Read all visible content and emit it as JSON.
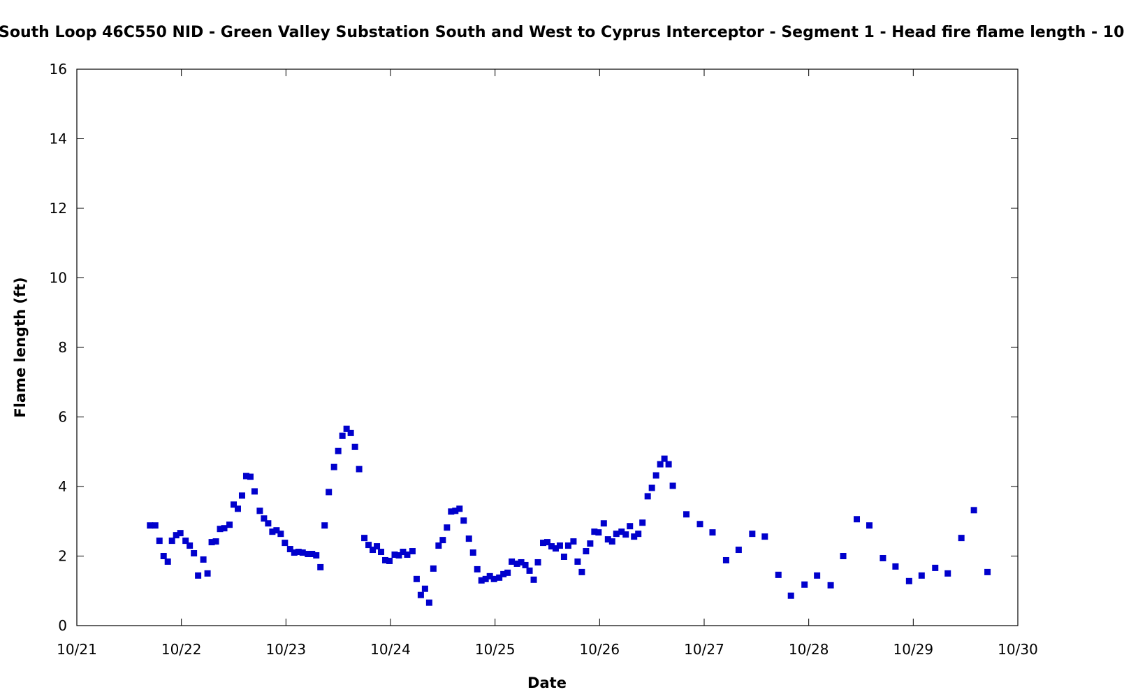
{
  "chart_data": {
    "type": "scatter",
    "title": "South Loop 46C550 NID - Green Valley Substation South and West to Cyprus Interceptor - Segment 1 - Head fire flame length - 10",
    "xlabel": "Date",
    "ylabel": "Flame length (ft)",
    "x_tick_labels": [
      "10/21",
      "10/22",
      "10/23",
      "10/24",
      "10/25",
      "10/26",
      "10/27",
      "10/28",
      "10/29",
      "10/30"
    ],
    "y_tick_labels": [
      "0",
      "2",
      "4",
      "6",
      "8",
      "10",
      "12",
      "14",
      "16"
    ],
    "xlim": [
      "10/21 00:00",
      "10/30 00:00"
    ],
    "ylim": [
      0,
      16
    ],
    "grid": false,
    "marker_color": "#0000cc",
    "x_day_start": 21,
    "series": [
      {
        "points": [
          [
            21.7,
            2.88
          ],
          [
            21.75,
            2.88
          ],
          [
            21.79,
            2.44
          ],
          [
            21.83,
            2.0
          ],
          [
            21.87,
            1.84
          ],
          [
            21.91,
            2.44
          ],
          [
            21.95,
            2.6
          ],
          [
            21.99,
            2.66
          ],
          [
            22.04,
            2.44
          ],
          [
            22.08,
            2.3
          ],
          [
            22.12,
            2.08
          ],
          [
            22.16,
            1.44
          ],
          [
            22.21,
            1.9
          ],
          [
            22.25,
            1.5
          ],
          [
            22.29,
            2.4
          ],
          [
            22.33,
            2.42
          ],
          [
            22.37,
            2.78
          ],
          [
            22.41,
            2.8
          ],
          [
            22.46,
            2.9
          ],
          [
            22.5,
            3.48
          ],
          [
            22.54,
            3.36
          ],
          [
            22.58,
            3.74
          ],
          [
            22.62,
            4.3
          ],
          [
            22.66,
            4.28
          ],
          [
            22.7,
            3.86
          ],
          [
            22.75,
            3.3
          ],
          [
            22.79,
            3.08
          ],
          [
            22.83,
            2.94
          ],
          [
            22.87,
            2.7
          ],
          [
            22.91,
            2.74
          ],
          [
            22.95,
            2.64
          ],
          [
            22.99,
            2.38
          ],
          [
            23.04,
            2.2
          ],
          [
            23.08,
            2.1
          ],
          [
            23.12,
            2.12
          ],
          [
            23.16,
            2.1
          ],
          [
            23.21,
            2.06
          ],
          [
            23.25,
            2.06
          ],
          [
            23.29,
            2.02
          ],
          [
            23.33,
            1.68
          ],
          [
            23.37,
            2.88
          ],
          [
            23.41,
            3.84
          ],
          [
            23.46,
            4.56
          ],
          [
            23.5,
            5.02
          ],
          [
            23.54,
            5.46
          ],
          [
            23.58,
            5.66
          ],
          [
            23.62,
            5.54
          ],
          [
            23.66,
            5.14
          ],
          [
            23.7,
            4.5
          ],
          [
            23.75,
            2.52
          ],
          [
            23.79,
            2.32
          ],
          [
            23.83,
            2.18
          ],
          [
            23.87,
            2.28
          ],
          [
            23.91,
            2.12
          ],
          [
            23.95,
            1.88
          ],
          [
            23.99,
            1.86
          ],
          [
            24.04,
            2.04
          ],
          [
            24.08,
            2.02
          ],
          [
            24.12,
            2.12
          ],
          [
            24.16,
            2.04
          ],
          [
            24.21,
            2.14
          ],
          [
            24.25,
            1.34
          ],
          [
            24.29,
            0.88
          ],
          [
            24.33,
            1.06
          ],
          [
            24.37,
            0.66
          ],
          [
            24.41,
            1.64
          ],
          [
            24.46,
            2.3
          ],
          [
            24.5,
            2.46
          ],
          [
            24.54,
            2.82
          ],
          [
            24.58,
            3.28
          ],
          [
            24.62,
            3.3
          ],
          [
            24.66,
            3.36
          ],
          [
            24.7,
            3.02
          ],
          [
            24.75,
            2.5
          ],
          [
            24.79,
            2.1
          ],
          [
            24.83,
            1.62
          ],
          [
            24.87,
            1.3
          ],
          [
            24.91,
            1.34
          ],
          [
            24.95,
            1.42
          ],
          [
            24.99,
            1.34
          ],
          [
            25.04,
            1.38
          ],
          [
            25.08,
            1.48
          ],
          [
            25.12,
            1.52
          ],
          [
            25.16,
            1.84
          ],
          [
            25.21,
            1.78
          ],
          [
            25.25,
            1.82
          ],
          [
            25.29,
            1.74
          ],
          [
            25.33,
            1.58
          ],
          [
            25.37,
            1.32
          ],
          [
            25.41,
            1.82
          ],
          [
            25.46,
            2.38
          ],
          [
            25.5,
            2.4
          ],
          [
            25.54,
            2.28
          ],
          [
            25.58,
            2.22
          ],
          [
            25.62,
            2.3
          ],
          [
            25.66,
            1.98
          ],
          [
            25.7,
            2.3
          ],
          [
            25.75,
            2.42
          ],
          [
            25.79,
            1.84
          ],
          [
            25.83,
            1.54
          ],
          [
            25.87,
            2.14
          ],
          [
            25.91,
            2.36
          ],
          [
            25.95,
            2.7
          ],
          [
            25.99,
            2.68
          ],
          [
            26.04,
            2.94
          ],
          [
            26.08,
            2.48
          ],
          [
            26.12,
            2.42
          ],
          [
            26.16,
            2.64
          ],
          [
            26.21,
            2.7
          ],
          [
            26.25,
            2.62
          ],
          [
            26.29,
            2.86
          ],
          [
            26.33,
            2.56
          ],
          [
            26.37,
            2.64
          ],
          [
            26.41,
            2.96
          ],
          [
            26.46,
            3.72
          ],
          [
            26.5,
            3.96
          ],
          [
            26.54,
            4.32
          ],
          [
            26.58,
            4.64
          ],
          [
            26.62,
            4.8
          ],
          [
            26.66,
            4.64
          ],
          [
            26.7,
            4.02
          ],
          [
            26.83,
            3.2
          ],
          [
            26.96,
            2.92
          ],
          [
            27.08,
            2.68
          ],
          [
            27.21,
            1.88
          ],
          [
            27.33,
            2.18
          ],
          [
            27.46,
            2.64
          ],
          [
            27.58,
            2.56
          ],
          [
            27.71,
            1.46
          ],
          [
            27.83,
            0.86
          ],
          [
            27.96,
            1.18
          ],
          [
            28.08,
            1.44
          ],
          [
            28.21,
            1.16
          ],
          [
            28.33,
            2.0
          ],
          [
            28.46,
            3.06
          ],
          [
            28.58,
            2.88
          ],
          [
            28.71,
            1.94
          ],
          [
            28.83,
            1.7
          ],
          [
            28.96,
            1.28
          ],
          [
            29.08,
            1.44
          ],
          [
            29.21,
            1.66
          ],
          [
            29.33,
            1.5
          ],
          [
            29.46,
            2.52
          ],
          [
            29.58,
            3.32
          ],
          [
            29.71,
            1.54
          ]
        ]
      }
    ]
  }
}
